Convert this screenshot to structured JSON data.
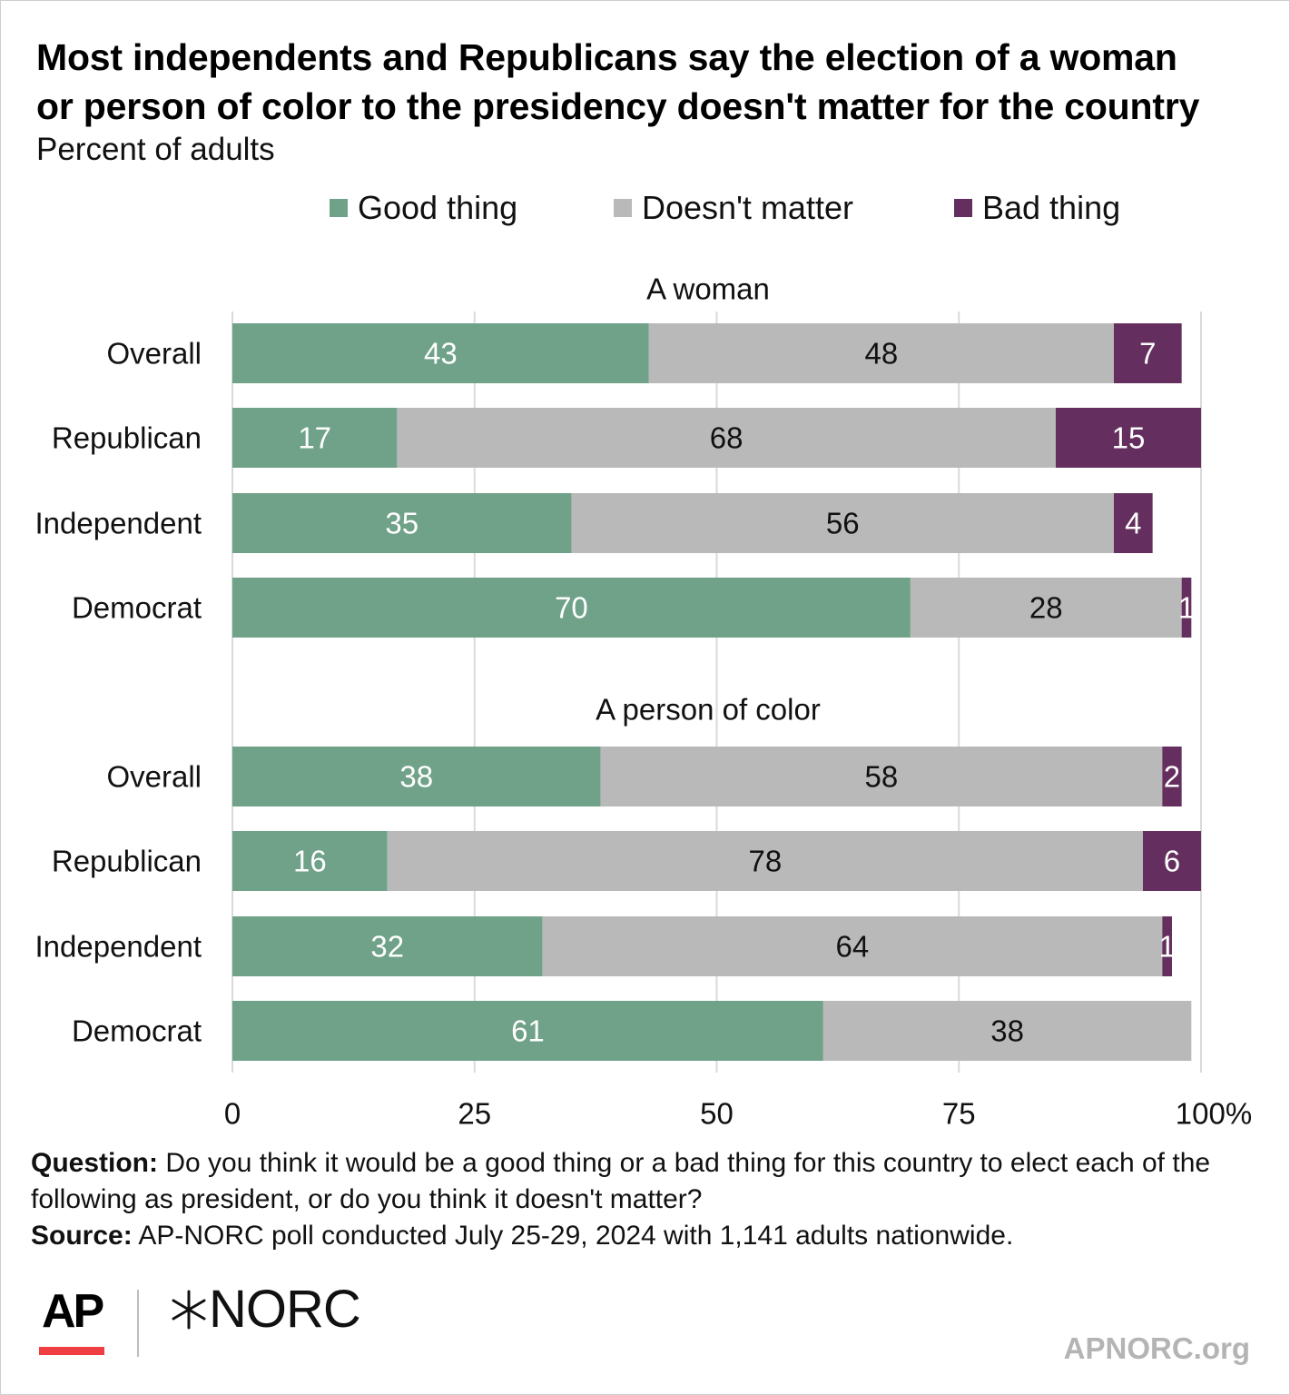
{
  "title_lines": [
    "Most independents and Republicans say the election of a woman",
    "or person of color to the presidency doesn't matter for the country"
  ],
  "subtitle": "Percent of adults",
  "legend": [
    {
      "label": "Good thing",
      "color": "#6fa288"
    },
    {
      "label": "Doesn't matter",
      "color": "#b9b9b9"
    },
    {
      "label": "Bad thing",
      "color": "#642f5f"
    }
  ],
  "chart_data": {
    "type": "bar",
    "orientation": "horizontal",
    "stacked": true,
    "xlim": [
      0,
      100
    ],
    "x_ticks": [
      "0",
      "25",
      "50",
      "75",
      "100%"
    ],
    "grid": true,
    "panels": [
      {
        "title": "A woman",
        "categories": [
          "Overall",
          "Republican",
          "Independent",
          "Democrat"
        ],
        "series": [
          {
            "name": "Good thing",
            "values": [
              43,
              17,
              35,
              70
            ]
          },
          {
            "name": "Doesn't matter",
            "values": [
              48,
              68,
              56,
              28
            ]
          },
          {
            "name": "Bad thing",
            "values": [
              7,
              15,
              4,
              1
            ]
          }
        ]
      },
      {
        "title": "A person of color",
        "categories": [
          "Overall",
          "Republican",
          "Independent",
          "Democrat"
        ],
        "series": [
          {
            "name": "Good thing",
            "values": [
              38,
              16,
              32,
              61
            ]
          },
          {
            "name": "Doesn't matter",
            "values": [
              58,
              78,
              64,
              38
            ]
          },
          {
            "name": "Bad thing",
            "values": [
              2,
              6,
              1,
              0
            ]
          }
        ]
      }
    ]
  },
  "footer": {
    "question_label": "Question:",
    "question_text": " Do you think it would be a good thing or a bad thing for this country to elect each of the following as president, or do you think it doesn't matter?",
    "source_label": "Source:",
    "source_text": " AP-NORC poll conducted July 25-29, 2024 with 1,141 adults nationwide."
  },
  "logos": {
    "ap": "AP",
    "norc": "NORC"
  },
  "site": "APNORC.org"
}
